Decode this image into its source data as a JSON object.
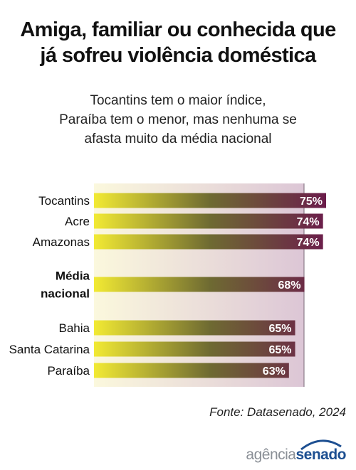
{
  "title_lines": [
    "Amiga, familiar ou conhecida que",
    "já sofreu violência doméstica"
  ],
  "subtitle_lines": [
    "Tocantins tem o maior índice,",
    "Paraíba tem o menor, mas nenhuma se",
    "afasta muito da média nacional"
  ],
  "source": "Fonte: Datasenado, 2024",
  "logo": {
    "part1": "agência",
    "part2": "senado"
  },
  "colors": {
    "bar_start": "#f2ea33",
    "bar_mid": "#6e6a32",
    "bar_end": "#6b1d4b",
    "panel_start": "#fbf8dd",
    "panel_end": "#dcc6d6",
    "label_text": "#ffffff"
  },
  "chart_data": {
    "type": "bar",
    "orientation": "horizontal",
    "unit": "%",
    "categories": [
      {
        "label": [
          "Tocantins"
        ],
        "value": 75,
        "display": "75%",
        "bold": false
      },
      {
        "label": [
          "Acre"
        ],
        "value": 74,
        "display": "74%",
        "bold": false
      },
      {
        "label": [
          "Amazonas"
        ],
        "value": 74,
        "display": "74%",
        "bold": false
      },
      {
        "label": [
          "Média",
          "nacional"
        ],
        "value": 68,
        "display": "68%",
        "bold": true
      },
      {
        "label": [
          "Bahia"
        ],
        "value": 65,
        "display": "65%",
        "bold": false
      },
      {
        "label": [
          "Santa Catarina"
        ],
        "value": 65,
        "display": "65%",
        "bold": false
      },
      {
        "label": [
          "Paraíba"
        ],
        "value": 63,
        "display": "63%",
        "bold": false
      }
    ],
    "xlim": [
      0,
      75
    ],
    "grid": false,
    "legend": "none"
  }
}
